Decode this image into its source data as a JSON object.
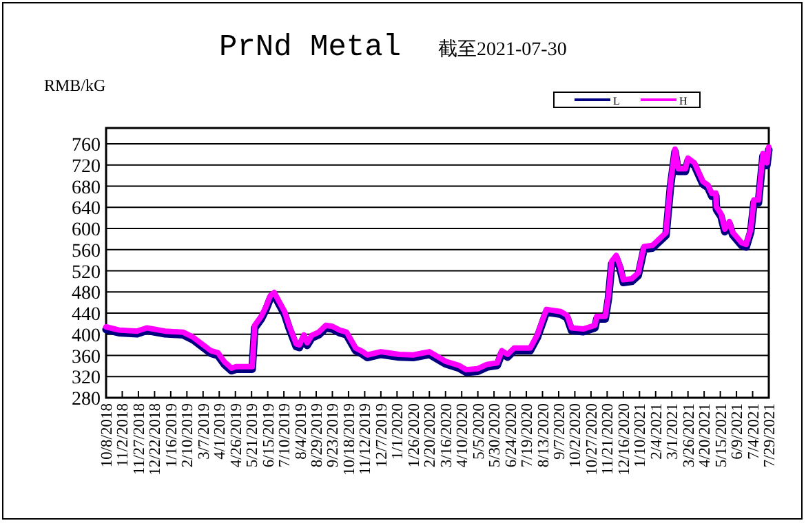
{
  "chart_data": {
    "type": "line",
    "title": "PrNd Metal",
    "subtitle": "截至2021-07-30",
    "ylabel": "RMB/kG",
    "legend": "top right",
    "grid": "y",
    "line_style": "solid",
    "marker": "none",
    "x": [
      "2018-10-08",
      "2018-10-28",
      "2018-11-25",
      "2018-12-10",
      "2019-01-07",
      "2019-02-04",
      "2019-02-19",
      "2019-03-05",
      "2019-03-19",
      "2019-03-30",
      "2019-04-09",
      "2019-04-20",
      "2019-04-27",
      "2019-05-22",
      "2019-05-26",
      "2019-06-05",
      "2019-06-12",
      "2019-06-19",
      "2019-06-25",
      "2019-07-11",
      "2019-07-18",
      "2019-07-29",
      "2019-08-03",
      "2019-08-10",
      "2019-08-15",
      "2019-08-22",
      "2019-09-02",
      "2019-09-13",
      "2019-09-23",
      "2019-10-04",
      "2019-10-15",
      "2019-10-29",
      "2019-11-09",
      "2019-11-16",
      "2019-12-07",
      "2020-01-04",
      "2020-01-26",
      "2020-02-20",
      "2020-03-16",
      "2020-04-06",
      "2020-04-17",
      "2020-05-05",
      "2020-05-19",
      "2020-06-04",
      "2020-06-11",
      "2020-06-20",
      "2020-06-30",
      "2020-07-25",
      "2020-08-05",
      "2020-08-19",
      "2020-09-10",
      "2020-09-20",
      "2020-09-27",
      "2020-10-15",
      "2020-11-02",
      "2020-11-05",
      "2020-11-18",
      "2020-11-23",
      "2020-11-28",
      "2020-12-05",
      "2020-12-11",
      "2020-12-16",
      "2020-12-29",
      "2021-01-08",
      "2021-01-17",
      "2021-01-30",
      "2021-02-20",
      "2021-02-27",
      "2021-03-06",
      "2021-03-11",
      "2021-03-22",
      "2021-03-26",
      "2021-04-05",
      "2021-04-18",
      "2021-04-26",
      "2021-05-02",
      "2021-05-08",
      "2021-05-09",
      "2021-05-16",
      "2021-05-22",
      "2021-05-29",
      "2021-06-03",
      "2021-06-17",
      "2021-06-24",
      "2021-07-01",
      "2021-07-06",
      "2021-07-13",
      "2021-07-20",
      "2021-07-26",
      "2021-07-29"
    ],
    "series": [
      {
        "name": "L",
        "color": "#000080",
        "values": [
          409,
          403,
          401,
          407,
          401,
          399,
          390,
          377,
          364,
          360,
          343,
          331,
          334,
          334,
          412,
          429,
          446,
          468,
          474,
          438,
          412,
          377,
          375,
          394,
          379,
          393,
          399,
          412,
          410,
          403,
          399,
          369,
          362,
          356,
          362,
          357,
          356,
          362,
          344,
          336,
          328,
          330,
          338,
          341,
          364,
          357,
          369,
          369,
          394,
          442,
          438,
          431,
          407,
          405,
          412,
          429,
          429,
          468,
          533,
          544,
          524,
          498,
          500,
          511,
          561,
          563,
          587,
          680,
          745,
          708,
          708,
          728,
          719,
          684,
          677,
          661,
          662,
          636,
          623,
          594,
          608,
          588,
          568,
          565,
          593,
          649,
          649,
          737,
          719,
          749
        ]
      },
      {
        "name": "H",
        "color": "#ff00ff",
        "values": [
          414,
          408,
          406,
          412,
          406,
          404,
          395,
          382,
          369,
          365,
          348,
          336,
          339,
          339,
          417,
          434,
          451,
          473,
          479,
          443,
          417,
          382,
          380,
          399,
          384,
          398,
          404,
          417,
          415,
          408,
          404,
          374,
          367,
          361,
          367,
          362,
          361,
          367,
          349,
          341,
          333,
          335,
          343,
          346,
          369,
          362,
          374,
          374,
          399,
          447,
          443,
          436,
          412,
          410,
          417,
          434,
          434,
          473,
          538,
          549,
          529,
          503,
          505,
          516,
          566,
          568,
          592,
          685,
          750,
          713,
          713,
          733,
          724,
          689,
          682,
          666,
          667,
          641,
          628,
          599,
          613,
          593,
          573,
          570,
          598,
          654,
          654,
          742,
          724,
          754
        ]
      }
    ],
    "ylim": [
      280,
      790
    ],
    "yticks": [
      280,
      320,
      360,
      400,
      440,
      480,
      520,
      560,
      600,
      640,
      680,
      720,
      760
    ],
    "xlim": [
      "2018-10-08",
      "2021-07-29"
    ],
    "xticks": [
      {
        "value": "2018-10-08",
        "label": "10/8/2018"
      },
      {
        "value": "2018-11-02",
        "label": "11/2/2018"
      },
      {
        "value": "2018-11-27",
        "label": "11/27/2018"
      },
      {
        "value": "2018-12-22",
        "label": "12/22/2018"
      },
      {
        "value": "2019-01-16",
        "label": "1/16/2019"
      },
      {
        "value": "2019-02-10",
        "label": "2/10/2019"
      },
      {
        "value": "2019-03-07",
        "label": "3/7/2019"
      },
      {
        "value": "2019-04-01",
        "label": "4/1/2019"
      },
      {
        "value": "2019-04-26",
        "label": "4/26/2019"
      },
      {
        "value": "2019-05-21",
        "label": "5/21/2019"
      },
      {
        "value": "2019-06-15",
        "label": "6/15/2019"
      },
      {
        "value": "2019-07-10",
        "label": "7/10/2019"
      },
      {
        "value": "2019-08-04",
        "label": "8/4/2019"
      },
      {
        "value": "2019-08-29",
        "label": "8/29/2019"
      },
      {
        "value": "2019-09-23",
        "label": "9/23/2019"
      },
      {
        "value": "2019-10-18",
        "label": "10/18/2019"
      },
      {
        "value": "2019-11-12",
        "label": "11/12/2019"
      },
      {
        "value": "2019-12-07",
        "label": "12/7/2019"
      },
      {
        "value": "2020-01-01",
        "label": "1/1/2020"
      },
      {
        "value": "2020-01-26",
        "label": "1/26/2020"
      },
      {
        "value": "2020-02-20",
        "label": "2/20/2020"
      },
      {
        "value": "2020-03-16",
        "label": "3/16/2020"
      },
      {
        "value": "2020-04-10",
        "label": "4/10/2020"
      },
      {
        "value": "2020-05-05",
        "label": "5/5/2020"
      },
      {
        "value": "2020-05-30",
        "label": "5/30/2020"
      },
      {
        "value": "2020-06-24",
        "label": "6/24/2020"
      },
      {
        "value": "2020-07-19",
        "label": "7/19/2020"
      },
      {
        "value": "2020-08-13",
        "label": "8/13/2020"
      },
      {
        "value": "2020-09-07",
        "label": "9/7/2020"
      },
      {
        "value": "2020-10-02",
        "label": "10/2/2020"
      },
      {
        "value": "2020-10-27",
        "label": "10/27/2020"
      },
      {
        "value": "2020-11-21",
        "label": "11/21/2020"
      },
      {
        "value": "2020-12-16",
        "label": "12/16/2020"
      },
      {
        "value": "2021-01-10",
        "label": "1/10/2021"
      },
      {
        "value": "2021-02-04",
        "label": "2/4/2021"
      },
      {
        "value": "2021-03-01",
        "label": "3/1/2021"
      },
      {
        "value": "2021-03-26",
        "label": "3/26/2021"
      },
      {
        "value": "2021-04-20",
        "label": "4/20/2021"
      },
      {
        "value": "2021-05-15",
        "label": "5/15/2021"
      },
      {
        "value": "2021-06-09",
        "label": "6/9/2021"
      },
      {
        "value": "2021-07-04",
        "label": "7/4/2021"
      },
      {
        "value": "2021-07-29",
        "label": "7/29/2021"
      }
    ]
  }
}
